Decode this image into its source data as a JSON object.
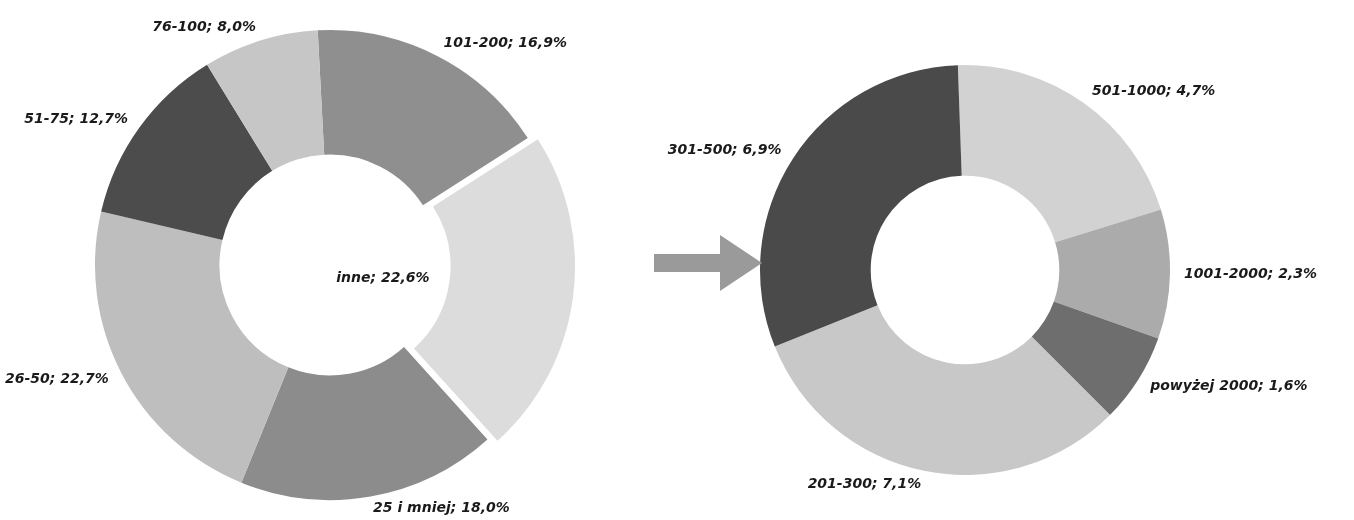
{
  "chart_data": [
    {
      "type": "donut",
      "categories": [
        "101-200",
        "inne",
        "25 i mniej",
        "26-50",
        "51-75",
        "76-100"
      ],
      "values": [
        16.9,
        22.6,
        18.0,
        22.7,
        12.7,
        8.0
      ],
      "colors": [
        "#8f8f8f",
        "#dcdcdc",
        "#8c8c8c",
        "#bebebe",
        "#4c4c4c",
        "#c6c6c6"
      ],
      "value_labels": [
        "16,9%",
        "22,6%",
        "18,0%",
        "22,7%",
        "12,7%",
        "8,0%"
      ],
      "legend": false
    },
    {
      "type": "donut",
      "categories": [
        "501-1000",
        "1001-2000",
        "powyżej 2000",
        "201-300",
        "301-500"
      ],
      "values": [
        4.7,
        2.3,
        1.6,
        7.1,
        6.9
      ],
      "colors": [
        "#d2d2d2",
        "#ababab",
        "#6e6e6e",
        "#c8c8c8",
        "#4a4a4a"
      ],
      "value_labels": [
        "4,7%",
        "2,3%",
        "1,6%",
        "7,1%",
        "6,9%"
      ],
      "legend": false
    }
  ]
}
